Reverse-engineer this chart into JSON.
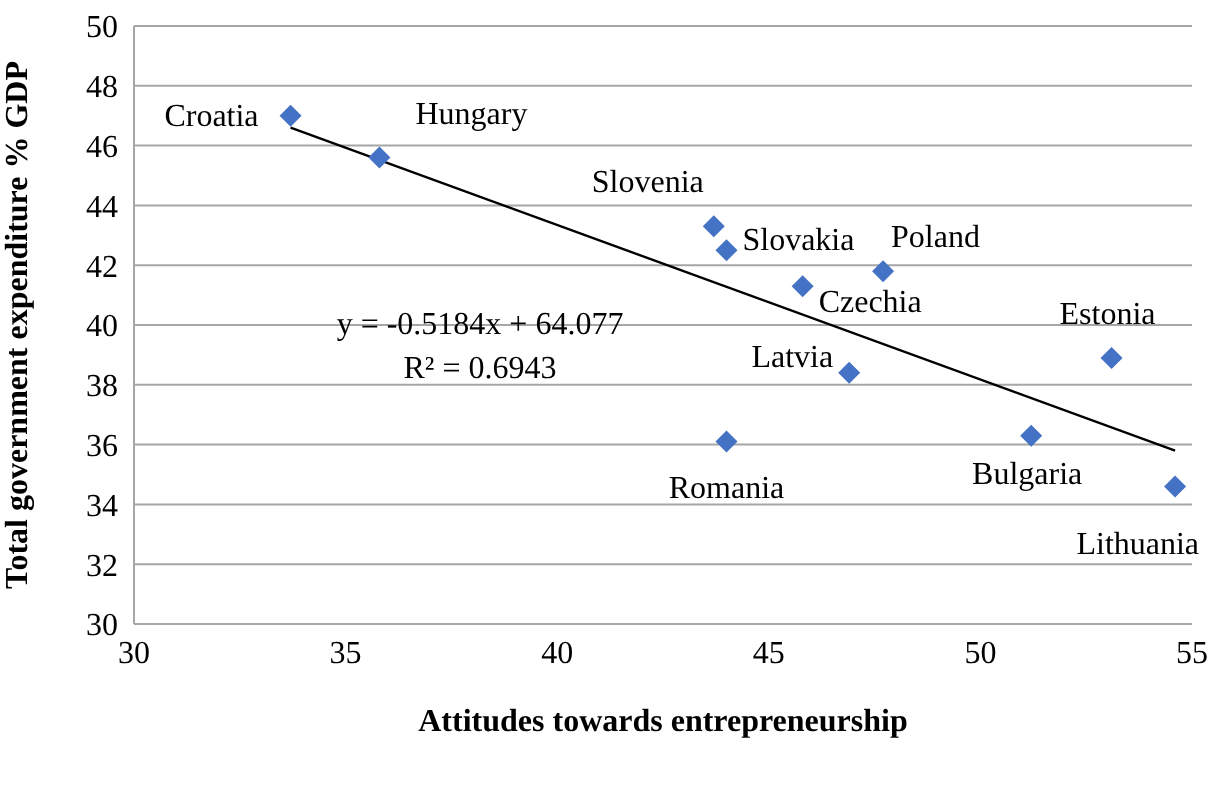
{
  "chart_data": {
    "type": "scatter",
    "xlabel": "Attitudes towards entrepreneurship",
    "ylabel": "Total government expenditure % GDP",
    "series": [
      {
        "color": "#4472c4",
        "x": [
          33.7,
          35.8,
          43.7,
          44.0,
          47.7,
          45.8,
          53.1,
          46.9,
          44.0,
          51.2,
          54.6
        ],
        "values": [
          47.0,
          45.6,
          43.3,
          42.5,
          41.8,
          41.3,
          38.9,
          38.4,
          36.1,
          36.3,
          34.6
        ]
      },
      {
        "type": "line",
        "marker": "none",
        "color": "#000000",
        "x": [
          33.7,
          54.6
        ],
        "values": [
          46.6,
          35.8
        ]
      }
    ],
    "annotations": [
      {
        "text": "Croatia",
        "x": 33.7,
        "y": 47.0
      },
      {
        "text": "Hungary",
        "x": 35.8,
        "y": 45.6
      },
      {
        "text": "Slovenia",
        "x": 43.7,
        "y": 43.3
      },
      {
        "text": "Slovakia",
        "x": 44.0,
        "y": 42.5
      },
      {
        "text": "Poland",
        "x": 47.7,
        "y": 41.8
      },
      {
        "text": "Czechia",
        "x": 45.8,
        "y": 41.3
      },
      {
        "text": "Estonia",
        "x": 53.1,
        "y": 38.9
      },
      {
        "text": "Latvia",
        "x": 46.9,
        "y": 38.4
      },
      {
        "text": "Romania",
        "x": 44.0,
        "y": 36.1
      },
      {
        "text": "Bulgaria",
        "x": 51.2,
        "y": 36.3
      },
      {
        "text": "Lithuania",
        "x": 54.6,
        "y": 34.6
      },
      "y = -0.5184x + 64.077",
      "R² = 0.6943"
    ],
    "xlim": [
      30,
      55
    ],
    "xticks": [
      30,
      35,
      40,
      45,
      50,
      55
    ],
    "ylim": [
      30,
      50
    ],
    "yticks": [
      30,
      32,
      34,
      36,
      38,
      40,
      42,
      44,
      46,
      48,
      50
    ],
    "grid": "y",
    "marker": "diamond",
    "legend": false
  }
}
